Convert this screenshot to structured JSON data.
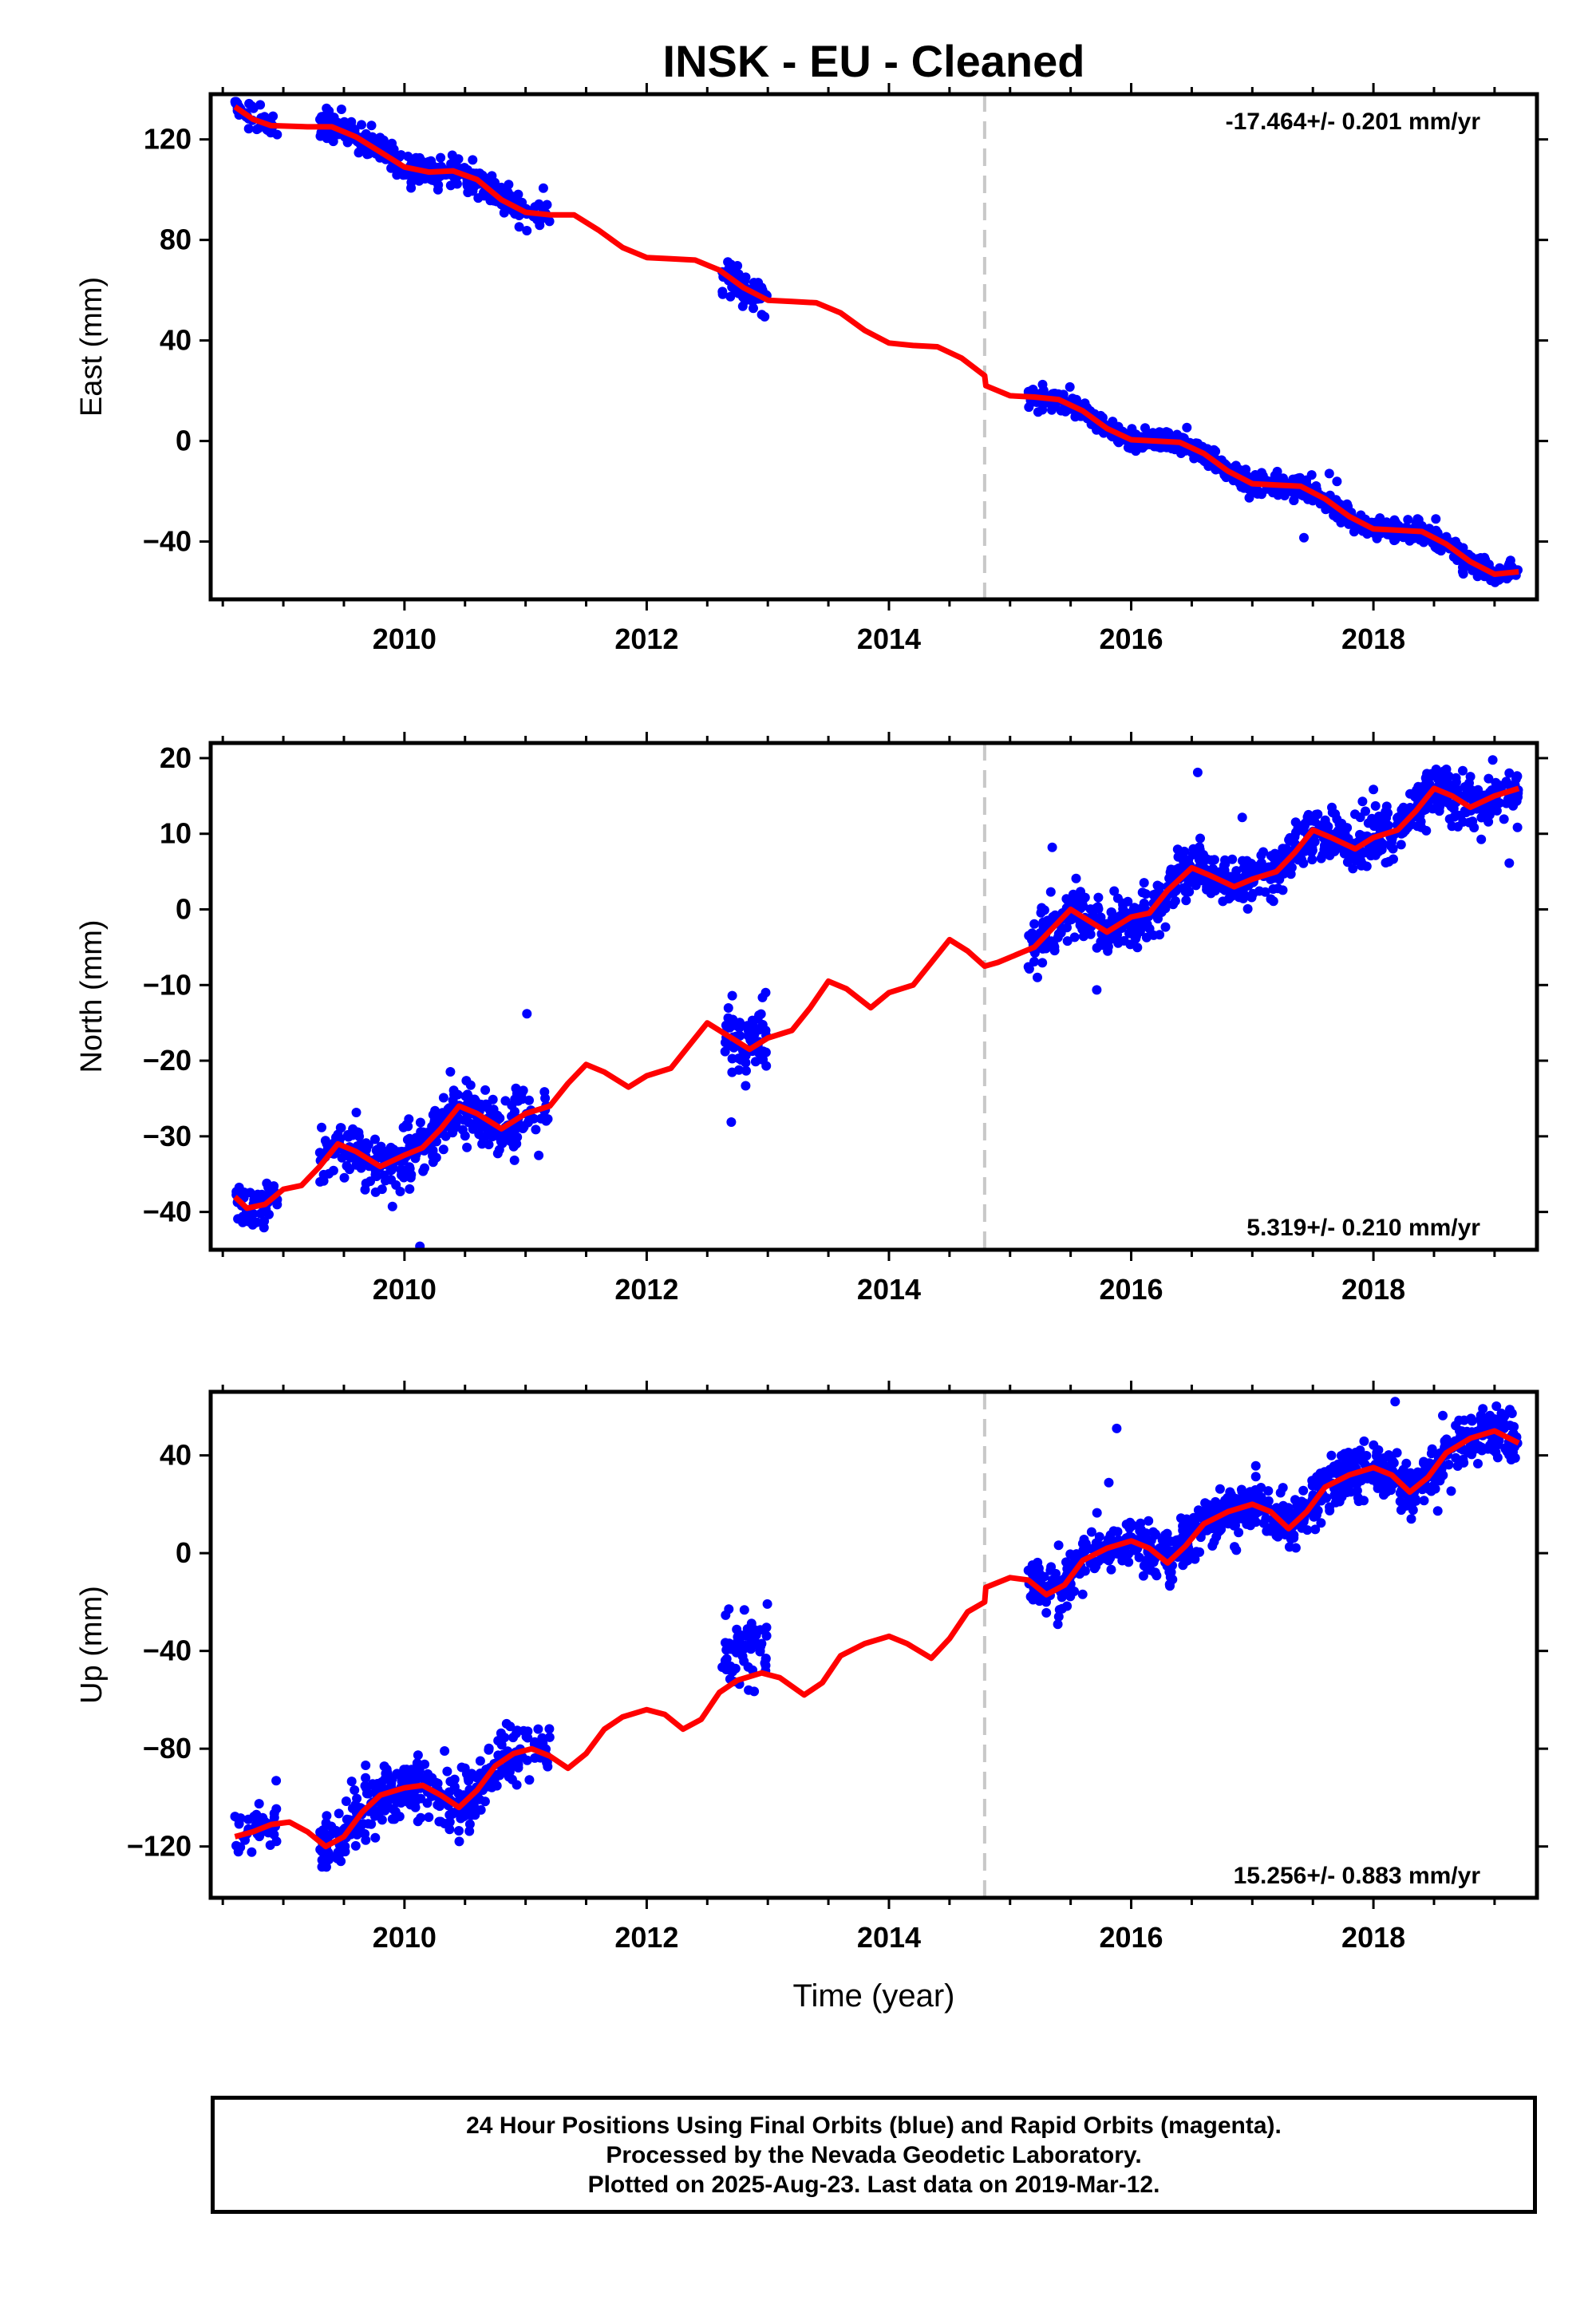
{
  "title": "INSK  - EU - Cleaned",
  "xlabel": "Time (year)",
  "colors": {
    "obs": "#0000ff",
    "model": "#ff0000",
    "break": "#c8c8c8",
    "axis": "#000000"
  },
  "footer": {
    "line1": "24 Hour Positions Using Final Orbits (blue) and Rapid Orbits (magenta).",
    "line2": "Processed by the Nevada Geodetic Laboratory.",
    "line3": "Plotted on 2025-Aug-23. Last data on 2019-Mar-12."
  },
  "chart_data": [
    {
      "type": "scatter",
      "name": "east",
      "ylabel": "East (mm)",
      "xlim": [
        2008.4,
        2019.35
      ],
      "ylim": [
        -63,
        138
      ],
      "xticks": [
        2010,
        2012,
        2014,
        2016,
        2018
      ],
      "yticks": [
        -40,
        0,
        40,
        80,
        120
      ],
      "rate": "-17.464+/- 0.201 mm/yr",
      "rate_position": "top-right",
      "break_x": 2014.79,
      "model_points": [
        [
          2008.6,
          133
        ],
        [
          2008.75,
          128
        ],
        [
          2008.9,
          125.5
        ],
        [
          2009.2,
          125
        ],
        [
          2009.4,
          125
        ],
        [
          2009.6,
          121
        ],
        [
          2009.8,
          115
        ],
        [
          2010.0,
          109
        ],
        [
          2010.2,
          107
        ],
        [
          2010.4,
          107.5
        ],
        [
          2010.6,
          104
        ],
        [
          2010.8,
          96
        ],
        [
          2011.0,
          91
        ],
        [
          2011.2,
          90
        ],
        [
          2011.4,
          90
        ],
        [
          2011.6,
          84
        ],
        [
          2011.8,
          77
        ],
        [
          2012.0,
          73
        ],
        [
          2012.2,
          72.5
        ],
        [
          2012.4,
          72
        ],
        [
          2012.6,
          68
        ],
        [
          2012.8,
          61
        ],
        [
          2013.0,
          56
        ],
        [
          2013.2,
          55.5
        ],
        [
          2013.4,
          55
        ],
        [
          2013.6,
          51
        ],
        [
          2013.8,
          44
        ],
        [
          2014.0,
          39
        ],
        [
          2014.2,
          38
        ],
        [
          2014.4,
          37.5
        ],
        [
          2014.6,
          33
        ],
        [
          2014.79,
          26
        ],
        [
          2014.8,
          22
        ],
        [
          2015.0,
          18
        ],
        [
          2015.2,
          17.5
        ],
        [
          2015.4,
          16.5
        ],
        [
          2015.6,
          12
        ],
        [
          2015.8,
          5
        ],
        [
          2016.0,
          0.5
        ],
        [
          2016.2,
          0
        ],
        [
          2016.4,
          -0.5
        ],
        [
          2016.6,
          -5
        ],
        [
          2016.8,
          -12
        ],
        [
          2017.0,
          -17
        ],
        [
          2017.2,
          -17.5
        ],
        [
          2017.4,
          -18
        ],
        [
          2017.6,
          -23
        ],
        [
          2017.8,
          -30
        ],
        [
          2018.0,
          -35
        ],
        [
          2018.2,
          -35.5
        ],
        [
          2018.4,
          -36
        ],
        [
          2018.6,
          -41
        ],
        [
          2018.8,
          -48
        ],
        [
          2019.0,
          -53
        ],
        [
          2019.2,
          -52
        ]
      ],
      "obs_segments": [
        {
          "x0": 2008.6,
          "x1": 2008.95,
          "n": 45,
          "spread": 2.2
        },
        {
          "x0": 2009.3,
          "x1": 2010.95,
          "n": 340,
          "spread": 2.6
        },
        {
          "x0": 2010.95,
          "x1": 2011.2,
          "n": 25,
          "spread": 3.0
        },
        {
          "x0": 2012.62,
          "x1": 2013.0,
          "n": 70,
          "spread": 3.5
        },
        {
          "x0": 2015.15,
          "x1": 2019.2,
          "n": 900,
          "spread": 2.0
        }
      ]
    },
    {
      "type": "scatter",
      "name": "north",
      "ylabel": "North (mm)",
      "xlim": [
        2008.4,
        2019.35
      ],
      "ylim": [
        -45,
        22
      ],
      "xticks": [
        2010,
        2012,
        2014,
        2016,
        2018
      ],
      "yticks": [
        -40,
        -30,
        -20,
        -10,
        0,
        10,
        20
      ],
      "rate": "5.319+/- 0.210 mm/yr",
      "rate_position": "bottom-right",
      "break_x": 2014.79,
      "model_points": [
        [
          2008.6,
          -38
        ],
        [
          2008.7,
          -39.5
        ],
        [
          2008.85,
          -39
        ],
        [
          2009.0,
          -37
        ],
        [
          2009.15,
          -36.5
        ],
        [
          2009.3,
          -34
        ],
        [
          2009.45,
          -31
        ],
        [
          2009.6,
          -32
        ],
        [
          2009.8,
          -34
        ],
        [
          2010.0,
          -32.5
        ],
        [
          2010.15,
          -31.5
        ],
        [
          2010.3,
          -29
        ],
        [
          2010.45,
          -26
        ],
        [
          2010.6,
          -27
        ],
        [
          2010.8,
          -29
        ],
        [
          2011.0,
          -27
        ],
        [
          2011.2,
          -26
        ],
        [
          2011.35,
          -23
        ],
        [
          2011.5,
          -20.5
        ],
        [
          2011.65,
          -21.5
        ],
        [
          2011.85,
          -23.5
        ],
        [
          2012.0,
          -22
        ],
        [
          2012.2,
          -21
        ],
        [
          2012.35,
          -18
        ],
        [
          2012.5,
          -15
        ],
        [
          2012.65,
          -16.5
        ],
        [
          2012.85,
          -18.5
        ],
        [
          2013.0,
          -17
        ],
        [
          2013.2,
          -16
        ],
        [
          2013.35,
          -13
        ],
        [
          2013.5,
          -9.5
        ],
        [
          2013.65,
          -10.5
        ],
        [
          2013.85,
          -13
        ],
        [
          2014.0,
          -11
        ],
        [
          2014.2,
          -10
        ],
        [
          2014.35,
          -7
        ],
        [
          2014.5,
          -4
        ],
        [
          2014.65,
          -5.5
        ],
        [
          2014.79,
          -7.5
        ],
        [
          2014.9,
          -7
        ],
        [
          2015.05,
          -6
        ],
        [
          2015.2,
          -5
        ],
        [
          2015.35,
          -2.5
        ],
        [
          2015.5,
          0
        ],
        [
          2015.65,
          -1.5
        ],
        [
          2015.8,
          -3
        ],
        [
          2016.0,
          -1
        ],
        [
          2016.15,
          -0.5
        ],
        [
          2016.3,
          2.5
        ],
        [
          2016.5,
          5.5
        ],
        [
          2016.65,
          4.5
        ],
        [
          2016.85,
          3
        ],
        [
          2017.0,
          4
        ],
        [
          2017.2,
          5
        ],
        [
          2017.35,
          7.5
        ],
        [
          2017.5,
          10.5
        ],
        [
          2017.65,
          9.5
        ],
        [
          2017.85,
          8
        ],
        [
          2018.0,
          9.5
        ],
        [
          2018.2,
          10.5
        ],
        [
          2018.35,
          13
        ],
        [
          2018.5,
          16
        ],
        [
          2018.65,
          15
        ],
        [
          2018.8,
          13.5
        ],
        [
          2019.0,
          15
        ],
        [
          2019.2,
          16
        ]
      ],
      "obs_segments": [
        {
          "x0": 2008.6,
          "x1": 2008.95,
          "n": 45,
          "spread": 1.6
        },
        {
          "x0": 2009.3,
          "x1": 2010.95,
          "n": 340,
          "spread": 1.8
        },
        {
          "x0": 2010.95,
          "x1": 2011.2,
          "n": 25,
          "spread": 2.0
        },
        {
          "x0": 2012.62,
          "x1": 2013.0,
          "n": 70,
          "spread": 2.5
        },
        {
          "x0": 2015.15,
          "x1": 2019.2,
          "n": 900,
          "spread": 1.6
        }
      ]
    },
    {
      "type": "scatter",
      "name": "up",
      "ylabel": "Up (mm)",
      "xlim": [
        2008.4,
        2019.35
      ],
      "ylim": [
        -141,
        66
      ],
      "xticks": [
        2010,
        2012,
        2014,
        2016,
        2018
      ],
      "yticks": [
        -120,
        -80,
        -40,
        0,
        40
      ],
      "rate": "15.256+/- 0.883 mm/yr",
      "rate_position": "bottom-right",
      "break_x": 2014.79,
      "model_points": [
        [
          2008.6,
          -116
        ],
        [
          2008.75,
          -114
        ],
        [
          2008.9,
          -111
        ],
        [
          2009.05,
          -110
        ],
        [
          2009.2,
          -114
        ],
        [
          2009.35,
          -120
        ],
        [
          2009.5,
          -116
        ],
        [
          2009.65,
          -106
        ],
        [
          2009.8,
          -99
        ],
        [
          2010.0,
          -96
        ],
        [
          2010.15,
          -95
        ],
        [
          2010.3,
          -99
        ],
        [
          2010.45,
          -104
        ],
        [
          2010.6,
          -97
        ],
        [
          2010.75,
          -87
        ],
        [
          2010.9,
          -82
        ],
        [
          2011.05,
          -80
        ],
        [
          2011.2,
          -83
        ],
        [
          2011.35,
          -88
        ],
        [
          2011.5,
          -82
        ],
        [
          2011.65,
          -72
        ],
        [
          2011.8,
          -67
        ],
        [
          2012.0,
          -64
        ],
        [
          2012.15,
          -66
        ],
        [
          2012.3,
          -72
        ],
        [
          2012.45,
          -68
        ],
        [
          2012.6,
          -57
        ],
        [
          2012.75,
          -52
        ],
        [
          2012.95,
          -49
        ],
        [
          2013.1,
          -51
        ],
        [
          2013.3,
          -58
        ],
        [
          2013.45,
          -53
        ],
        [
          2013.6,
          -42
        ],
        [
          2013.8,
          -37
        ],
        [
          2014.0,
          -34
        ],
        [
          2014.15,
          -37
        ],
        [
          2014.35,
          -43
        ],
        [
          2014.5,
          -35
        ],
        [
          2014.65,
          -24
        ],
        [
          2014.79,
          -20
        ],
        [
          2014.8,
          -14
        ],
        [
          2015.0,
          -10
        ],
        [
          2015.15,
          -11
        ],
        [
          2015.3,
          -17
        ],
        [
          2015.45,
          -13
        ],
        [
          2015.6,
          -3
        ],
        [
          2015.8,
          2
        ],
        [
          2016.0,
          5
        ],
        [
          2016.15,
          2
        ],
        [
          2016.3,
          -4
        ],
        [
          2016.45,
          3
        ],
        [
          2016.6,
          12
        ],
        [
          2016.8,
          17
        ],
        [
          2017.0,
          20
        ],
        [
          2017.15,
          17
        ],
        [
          2017.3,
          10
        ],
        [
          2017.45,
          17
        ],
        [
          2017.6,
          27
        ],
        [
          2017.8,
          32
        ],
        [
          2018.0,
          35
        ],
        [
          2018.15,
          32
        ],
        [
          2018.3,
          25
        ],
        [
          2018.45,
          31
        ],
        [
          2018.6,
          41
        ],
        [
          2018.8,
          47
        ],
        [
          2019.0,
          50
        ],
        [
          2019.2,
          45
        ]
      ],
      "obs_segments": [
        {
          "x0": 2008.6,
          "x1": 2008.95,
          "n": 45,
          "spread": 5.0
        },
        {
          "x0": 2009.3,
          "x1": 2010.95,
          "n": 340,
          "spread": 6.0
        },
        {
          "x0": 2010.95,
          "x1": 2011.2,
          "n": 25,
          "spread": 6.0
        },
        {
          "x0": 2012.62,
          "x1": 2013.0,
          "n": 70,
          "spread": 7.0,
          "offset": 12
        },
        {
          "x0": 2015.15,
          "x1": 2019.2,
          "n": 900,
          "spread": 5.0
        }
      ]
    }
  ]
}
